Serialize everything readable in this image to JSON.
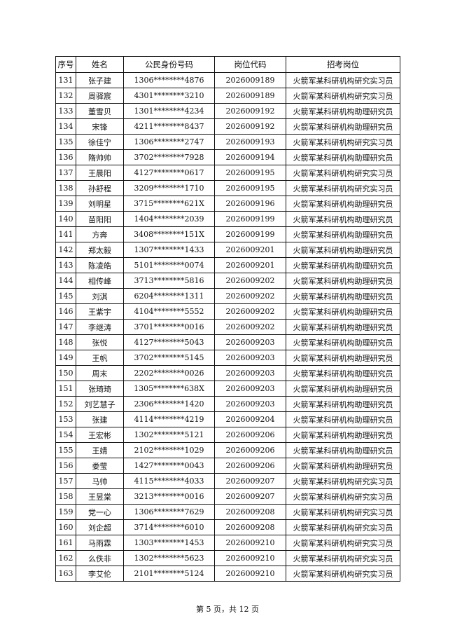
{
  "table": {
    "headers": [
      "序号",
      "姓名",
      "公民身份号码",
      "岗位代码",
      "招考岗位"
    ],
    "rows": [
      [
        "131",
        "张子建",
        "1306********4876",
        "2026009189",
        "火箭军某科研机构研究实习员"
      ],
      [
        "132",
        "周驿宸",
        "4301********3210",
        "2026009189",
        "火箭军某科研机构研究实习员"
      ],
      [
        "133",
        "董雪贝",
        "1301********4234",
        "2026009192",
        "火箭军某科研机构助理研究员"
      ],
      [
        "134",
        "宋锋",
        "4211********8437",
        "2026009192",
        "火箭军某科研机构助理研究员"
      ],
      [
        "135",
        "徐佳宁",
        "1306********2747",
        "2026009193",
        "火箭军某科研机构研究实习员"
      ],
      [
        "136",
        "隋帅帅",
        "3702********7928",
        "2026009194",
        "火箭军某科研机构助理研究员"
      ],
      [
        "137",
        "王晨阳",
        "4127********0617",
        "2026009195",
        "火箭军某科研机构研究实习员"
      ],
      [
        "138",
        "孙舒程",
        "3209********1710",
        "2026009195",
        "火箭军某科研机构研究实习员"
      ],
      [
        "139",
        "刘明星",
        "3715********621X",
        "2026009196",
        "火箭军某科研机构助理研究员"
      ],
      [
        "140",
        "苗阳阳",
        "1404********2039",
        "2026009199",
        "火箭军某科研机构助理研究员"
      ],
      [
        "141",
        "方奔",
        "3408********151X",
        "2026009199",
        "火箭军某科研机构助理研究员"
      ],
      [
        "142",
        "郑太毅",
        "1307********1433",
        "2026009201",
        "火箭军某科研机构助理研究员"
      ],
      [
        "143",
        "陈凌皓",
        "5101********0074",
        "2026009201",
        "火箭军某科研机构助理研究员"
      ],
      [
        "144",
        "相传峰",
        "3713********5816",
        "2026009202",
        "火箭军某科研机构助理研究员"
      ],
      [
        "145",
        "刘淇",
        "6204********1311",
        "2026009202",
        "火箭军某科研机构助理研究员"
      ],
      [
        "146",
        "王紫宇",
        "4104********5552",
        "2026009202",
        "火箭军某科研机构助理研究员"
      ],
      [
        "147",
        "李继涛",
        "3701********0016",
        "2026009202",
        "火箭军某科研机构助理研究员"
      ],
      [
        "148",
        "张悦",
        "4127********5043",
        "2026009203",
        "火箭军某科研机构助理研究员"
      ],
      [
        "149",
        "王帆",
        "3702********5145",
        "2026009203",
        "火箭军某科研机构助理研究员"
      ],
      [
        "150",
        "周末",
        "2202********0026",
        "2026009203",
        "火箭军某科研机构助理研究员"
      ],
      [
        "151",
        "张琦琦",
        "1305********638X",
        "2026009203",
        "火箭军某科研机构助理研究员"
      ],
      [
        "152",
        "刘艺慧子",
        "2306********1420",
        "2026009203",
        "火箭军某科研机构助理研究员"
      ],
      [
        "153",
        "张建",
        "4114********4219",
        "2026009204",
        "火箭军某科研机构助理研究员"
      ],
      [
        "154",
        "王宏彬",
        "1302********5121",
        "2026009206",
        "火箭军某科研机构助理研究员"
      ],
      [
        "155",
        "王婧",
        "2102********1029",
        "2026009206",
        "火箭军某科研机构助理研究员"
      ],
      [
        "156",
        "娄莹",
        "1427********0043",
        "2026009206",
        "火箭军某科研机构助理研究员"
      ],
      [
        "157",
        "马帅",
        "4115********4033",
        "2026009207",
        "火箭军某科研机构研究实习员"
      ],
      [
        "158",
        "王昱棠",
        "3213********0016",
        "2026009207",
        "火箭军某科研机构研究实习员"
      ],
      [
        "159",
        "党一心",
        "1306********7629",
        "2026009208",
        "火箭军某科研机构研究实习员"
      ],
      [
        "160",
        "刘企超",
        "3714********6010",
        "2026009208",
        "火箭军某科研机构研究实习员"
      ],
      [
        "161",
        "马雨霖",
        "1303********1453",
        "2026009210",
        "火箭军某科研机构研究实习员"
      ],
      [
        "162",
        "么佚非",
        "1302********5623",
        "2026009210",
        "火箭军某科研机构研究实习员"
      ],
      [
        "163",
        "李艾伦",
        "2101********5124",
        "2026009210",
        "火箭军某科研机构研究实习员"
      ]
    ]
  },
  "footer": {
    "page_label": "第 5 页，共 12 页"
  }
}
